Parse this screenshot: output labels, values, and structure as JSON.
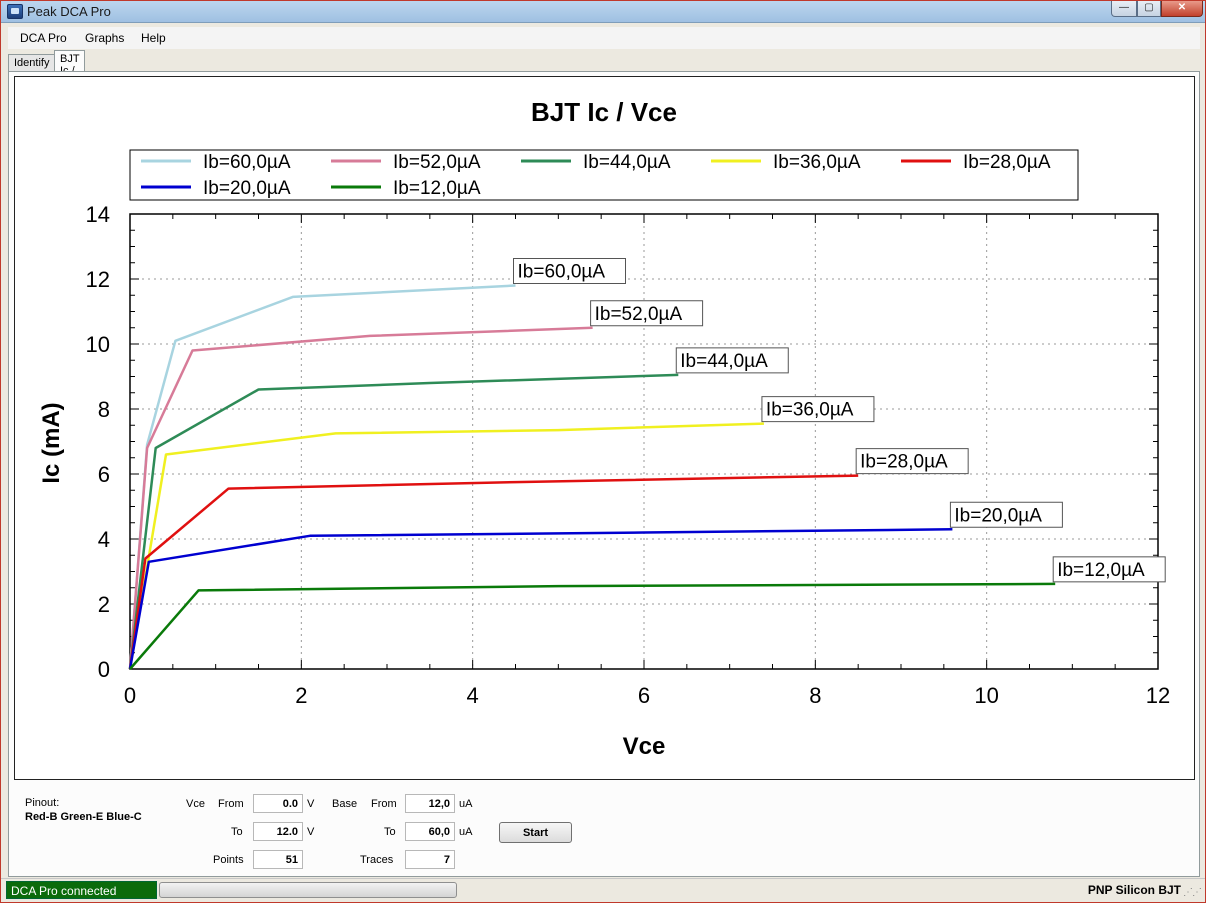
{
  "window": {
    "title": "Peak DCA Pro",
    "controls": {
      "minimize": "—",
      "maximize": "▢",
      "close": "✕"
    }
  },
  "menu": [
    "DCA Pro",
    "Graphs",
    "Help"
  ],
  "tabs": [
    {
      "label": "Identify",
      "active": false
    },
    {
      "label": "BJT Ic / Vce",
      "active": true
    }
  ],
  "chart_data": {
    "type": "line",
    "title": "BJT Ic / Vce",
    "xlabel": "Vce",
    "ylabel": "Ic (mA)",
    "xlim": [
      0,
      12
    ],
    "ylim": [
      0,
      14
    ],
    "xticks": [
      0,
      2,
      4,
      6,
      8,
      10,
      12
    ],
    "yticks": [
      0,
      2,
      4,
      6,
      8,
      10,
      12,
      14
    ],
    "grid": true,
    "legend": "top",
    "series": [
      {
        "name": "Ib=60,0µA",
        "color": "#a8d4e0",
        "points": [
          [
            0,
            0
          ],
          [
            0.2,
            6.9
          ],
          [
            0.53,
            10.1
          ],
          [
            1.9,
            11.45
          ],
          [
            4.5,
            11.8
          ]
        ]
      },
      {
        "name": "Ib=52,0µA",
        "color": "#d77b98",
        "points": [
          [
            0,
            0
          ],
          [
            0.2,
            6.8
          ],
          [
            0.73,
            9.8
          ],
          [
            2.8,
            10.25
          ],
          [
            5.4,
            10.5
          ]
        ]
      },
      {
        "name": "Ib=44,0µA",
        "color": "#2e8b57",
        "points": [
          [
            0,
            0
          ],
          [
            0.3,
            6.8
          ],
          [
            1.5,
            8.6
          ],
          [
            3.5,
            8.8
          ],
          [
            6.4,
            9.05
          ]
        ]
      },
      {
        "name": "Ib=36,0µA",
        "color": "#f0f020",
        "points": [
          [
            0,
            0
          ],
          [
            0.42,
            6.6
          ],
          [
            2.4,
            7.25
          ],
          [
            5,
            7.35
          ],
          [
            7.4,
            7.55
          ]
        ]
      },
      {
        "name": "Ib=28,0µA",
        "color": "#e01010",
        "points": [
          [
            0,
            0
          ],
          [
            0.18,
            3.4
          ],
          [
            1.15,
            5.55
          ],
          [
            4.5,
            5.75
          ],
          [
            8.5,
            5.95
          ]
        ]
      },
      {
        "name": "Ib=20,0µA",
        "color": "#0000d0",
        "points": [
          [
            0,
            0
          ],
          [
            0.22,
            3.3
          ],
          [
            2.1,
            4.1
          ],
          [
            6,
            4.2
          ],
          [
            9.6,
            4.3
          ]
        ]
      },
      {
        "name": "Ib=12,0µA",
        "color": "#0a7a0a",
        "points": [
          [
            0,
            0
          ],
          [
            0.8,
            2.42
          ],
          [
            5,
            2.55
          ],
          [
            10.8,
            2.62
          ]
        ]
      }
    ]
  },
  "controls": {
    "pinout_label": "Pinout:",
    "pinout_value": "Red-B Green-E Blue-C",
    "vce_label": "Vce",
    "from_label": "From",
    "to_label": "To",
    "vce_from": "0.0",
    "vce_to": "12.0",
    "vce_unit": "V",
    "base_label": "Base",
    "base_from": "12,0",
    "base_to": "60,0",
    "base_unit": "uA",
    "points_label": "Points",
    "points_value": "51",
    "traces_label": "Traces",
    "traces_value": "7",
    "start_label": "Start"
  },
  "status": {
    "connection": "DCA Pro connected",
    "device_type": "PNP Silicon BJT",
    "connection_color": "#0b6b0b"
  }
}
